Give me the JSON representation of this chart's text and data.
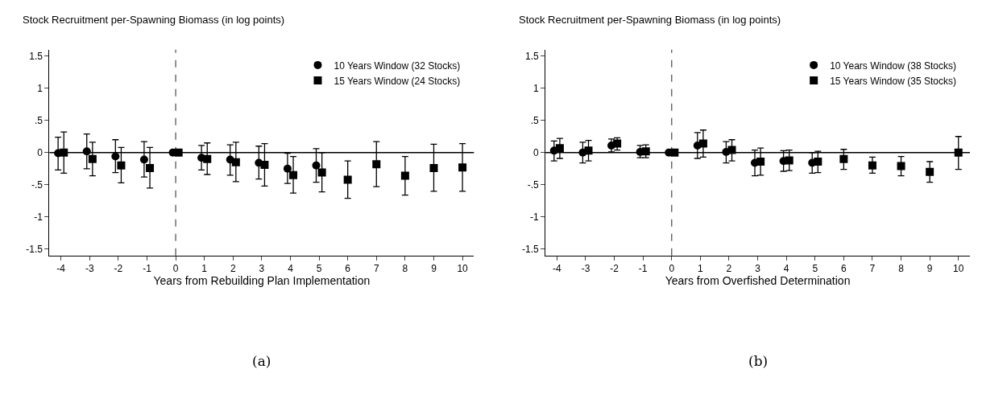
{
  "chart_data": [
    {
      "type": "scatter",
      "title": "Stock Recruitment per-Spawning Biomass (in log points)",
      "xlabel": "Years from Rebuilding Plan Implementation",
      "annotations": [
        "(a)"
      ],
      "xlim": [
        -4.4,
        10.4
      ],
      "xticks": [
        -4,
        -3,
        -2,
        -1,
        0,
        1,
        2,
        3,
        4,
        5,
        6,
        7,
        8,
        9,
        10
      ],
      "ylim": [
        -1.6,
        1.6
      ],
      "yticks": [
        {
          "value": -1.5,
          "label": "-1.5"
        },
        {
          "value": -1,
          "label": "-1"
        },
        {
          "value": -0.5,
          "label": "-.5"
        },
        {
          "value": 0,
          "label": "0"
        },
        {
          "value": 0.5,
          "label": ".5"
        },
        {
          "value": 1,
          "label": "1"
        },
        {
          "value": 1.5,
          "label": "1.5"
        }
      ],
      "grid": false,
      "legend": "top right",
      "ref_lines": [
        {
          "axis": "y",
          "value": 0,
          "color": "#000000",
          "line_style": "solid"
        },
        {
          "axis": "x",
          "value": 0,
          "color": "#555555",
          "line_style": "dashed"
        }
      ],
      "series": [
        {
          "name": "10 Years Window (32 Stocks)",
          "color": "#000000",
          "marker": "circle",
          "x": [
            -4.1,
            -3.1,
            -2.1,
            -1.1,
            -0.1,
            0.9,
            1.9,
            2.9,
            3.9,
            4.9
          ],
          "values": [
            -0.01,
            0.02,
            -0.06,
            -0.11,
            0,
            -0.08,
            -0.11,
            -0.16,
            -0.25,
            -0.2
          ],
          "errors": [
            [
              -0.27,
              0.24
            ],
            [
              -0.25,
              0.29
            ],
            [
              -0.31,
              0.2
            ],
            [
              -0.38,
              0.17
            ],
            null,
            [
              -0.27,
              0.11
            ],
            [
              -0.35,
              0.12
            ],
            [
              -0.41,
              0.1
            ],
            [
              -0.48,
              -0.01
            ],
            [
              -0.46,
              0.06
            ]
          ]
        },
        {
          "name": "15 Years Window (24 Stocks)",
          "color": "#000000",
          "marker": "square",
          "x": [
            -3.9,
            -2.9,
            -1.9,
            -0.9,
            0.1,
            1.1,
            2.1,
            3.1,
            4.1,
            5.1,
            6,
            7,
            8,
            9,
            10
          ],
          "values": [
            0,
            -0.1,
            -0.2,
            -0.24,
            0,
            -0.1,
            -0.15,
            -0.19,
            -0.35,
            -0.31,
            -0.42,
            -0.18,
            -0.36,
            -0.24,
            -0.23
          ],
          "errors": [
            [
              -0.32,
              0.32
            ],
            [
              -0.36,
              0.16
            ],
            [
              -0.47,
              0.08
            ],
            [
              -0.55,
              0.08
            ],
            null,
            [
              -0.34,
              0.15
            ],
            [
              -0.45,
              0.16
            ],
            [
              -0.52,
              0.14
            ],
            [
              -0.63,
              -0.06
            ],
            [
              -0.61,
              0
            ],
            [
              -0.71,
              -0.13
            ],
            [
              -0.53,
              0.17
            ],
            [
              -0.66,
              -0.06
            ],
            [
              -0.6,
              0.13
            ],
            [
              -0.6,
              0.14
            ]
          ]
        }
      ]
    },
    {
      "type": "scatter",
      "title": "Stock Recruitment per-Spawning Biomass (in log points)",
      "xlabel": "Years from Overfished Determination",
      "annotations": [
        "(b)"
      ],
      "xlim": [
        -4.4,
        10.4
      ],
      "xticks": [
        -4,
        -3,
        -2,
        -1,
        0,
        1,
        2,
        3,
        4,
        5,
        6,
        7,
        8,
        9,
        10
      ],
      "ylim": [
        -1.6,
        1.6
      ],
      "yticks": [
        {
          "value": -1.5,
          "label": "-1.5"
        },
        {
          "value": -1,
          "label": "-1"
        },
        {
          "value": -0.5,
          "label": "-.5"
        },
        {
          "value": 0,
          "label": "0"
        },
        {
          "value": 0.5,
          "label": ".5"
        },
        {
          "value": 1,
          "label": "1"
        },
        {
          "value": 1.5,
          "label": "1.5"
        }
      ],
      "grid": false,
      "legend": "top right",
      "ref_lines": [
        {
          "axis": "y",
          "value": 0,
          "color": "#000000",
          "line_style": "solid"
        },
        {
          "axis": "x",
          "value": 0,
          "color": "#555555",
          "line_style": "dashed"
        }
      ],
      "series": [
        {
          "name": "10 Years Window (38 Stocks)",
          "color": "#000000",
          "marker": "circle",
          "x": [
            -4.1,
            -3.1,
            -2.1,
            -1.1,
            -0.1,
            0.9,
            1.9,
            2.9,
            3.9,
            4.9
          ],
          "values": [
            0.03,
            0,
            0.11,
            0.01,
            0,
            0.11,
            0.01,
            -0.16,
            -0.13,
            -0.16
          ],
          "errors": [
            [
              -0.13,
              0.18
            ],
            [
              -0.16,
              0.16
            ],
            [
              0.01,
              0.21
            ],
            [
              -0.08,
              0.11
            ],
            null,
            [
              -0.09,
              0.31
            ],
            [
              -0.16,
              0.17
            ],
            [
              -0.36,
              0.04
            ],
            [
              -0.29,
              0.03
            ],
            [
              -0.32,
              0
            ]
          ]
        },
        {
          "name": "15 Years Window (35 Stocks)",
          "color": "#000000",
          "marker": "square",
          "x": [
            -3.9,
            -2.9,
            -1.9,
            -0.9,
            0.1,
            1.1,
            2.1,
            3.1,
            4.1,
            5.1,
            6,
            7,
            8,
            9,
            10
          ],
          "values": [
            0.07,
            0.03,
            0.14,
            0.02,
            0,
            0.14,
            0.04,
            -0.14,
            -0.12,
            -0.14,
            -0.1,
            -0.2,
            -0.21,
            -0.3,
            0
          ],
          "errors": [
            [
              -0.09,
              0.22
            ],
            [
              -0.13,
              0.19
            ],
            [
              0.04,
              0.23
            ],
            [
              -0.08,
              0.12
            ],
            null,
            [
              -0.07,
              0.35
            ],
            [
              -0.13,
              0.2
            ],
            [
              -0.35,
              0.07
            ],
            [
              -0.28,
              0.04
            ],
            [
              -0.31,
              0.02
            ],
            [
              -0.26,
              0.05
            ],
            [
              -0.32,
              -0.07
            ],
            [
              -0.36,
              -0.06
            ],
            [
              -0.46,
              -0.14
            ],
            [
              -0.26,
              0.25
            ]
          ]
        }
      ]
    }
  ]
}
